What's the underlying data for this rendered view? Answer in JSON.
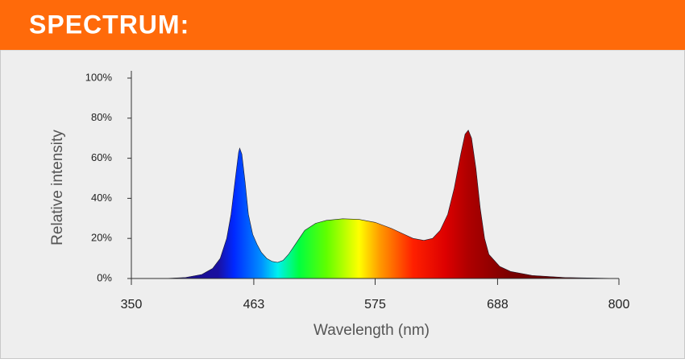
{
  "chart_data": {
    "type": "area",
    "title": "SPECTRUM:",
    "x_label": "Wavelength (nm)",
    "y_label": "Relative intensity",
    "x": [
      350,
      380,
      400,
      415,
      425,
      432,
      438,
      442,
      446,
      449,
      450,
      452,
      455,
      458,
      462,
      466,
      470,
      475,
      480,
      485,
      490,
      495,
      500,
      505,
      510,
      520,
      530,
      545,
      560,
      575,
      590,
      600,
      610,
      620,
      628,
      635,
      642,
      648,
      654,
      658,
      661,
      664,
      668,
      672,
      676,
      680,
      690,
      700,
      720,
      750,
      800
    ],
    "values": [
      0,
      0,
      0.5,
      2,
      5,
      10,
      20,
      32,
      50,
      63,
      65,
      62,
      48,
      32,
      22,
      17,
      13,
      10,
      8.5,
      8,
      9,
      12,
      16,
      20,
      24,
      27.5,
      29,
      29.8,
      29.5,
      28,
      25,
      22.5,
      20,
      19,
      20,
      24,
      32,
      45,
      62,
      72,
      74,
      70,
      55,
      35,
      20,
      12,
      6,
      3.5,
      1.5,
      0.5,
      0
    ],
    "xlim": [
      350,
      800
    ],
    "xticks": [
      350,
      463,
      575,
      688,
      800
    ],
    "ylim": [
      0,
      100
    ],
    "yticks": [
      {
        "value": 0,
        "label": "0%"
      },
      {
        "value": 20,
        "label": "20%"
      },
      {
        "value": 40,
        "label": "40%"
      },
      {
        "value": 60,
        "label": "60%"
      },
      {
        "value": 80,
        "label": "80%"
      },
      {
        "value": 100,
        "label": "100%"
      }
    ],
    "grid": false
  }
}
